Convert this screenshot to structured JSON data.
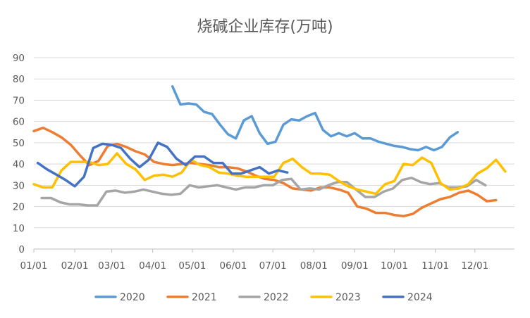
{
  "chart_data": {
    "type": "line",
    "title": "烧碱企业库存(万吨)",
    "xlabel": "",
    "ylabel": "",
    "ylim": [
      0,
      90
    ],
    "yticks": [
      "0",
      "10",
      "20",
      "30",
      "40",
      "50",
      "60",
      "70",
      "80",
      "90"
    ],
    "xlim": [
      1,
      365
    ],
    "xticks": [
      {
        "label": "01/01",
        "day": 1
      },
      {
        "label": "02/01",
        "day": 32
      },
      {
        "label": "03/01",
        "day": 60
      },
      {
        "label": "04/01",
        "day": 91
      },
      {
        "label": "05/01",
        "day": 121
      },
      {
        "label": "06/01",
        "day": 152
      },
      {
        "label": "07/01",
        "day": 182
      },
      {
        "label": "08/01",
        "day": 213
      },
      {
        "label": "09/01",
        "day": 244
      },
      {
        "label": "10/01",
        "day": 274
      },
      {
        "label": "11/01",
        "day": 305
      },
      {
        "label": "12/01",
        "day": 335
      }
    ],
    "grid": true,
    "legend": "bottom",
    "series": [
      {
        "name": "2020",
        "color": "#5b9bd5",
        "points": [
          [
            106,
            76.5
          ],
          [
            112,
            68
          ],
          [
            118,
            68.5
          ],
          [
            124,
            68
          ],
          [
            130,
            64.5
          ],
          [
            136,
            63.5
          ],
          [
            142,
            58.5
          ],
          [
            148,
            54
          ],
          [
            154,
            52
          ],
          [
            160,
            60.5
          ],
          [
            166,
            62.5
          ],
          [
            172,
            54.5
          ],
          [
            178,
            49.5
          ],
          [
            184,
            50.5
          ],
          [
            190,
            58.5
          ],
          [
            196,
            61
          ],
          [
            202,
            60.5
          ],
          [
            208,
            62.5
          ],
          [
            214,
            64
          ],
          [
            220,
            56
          ],
          [
            226,
            53
          ],
          [
            232,
            54.5
          ],
          [
            238,
            53
          ],
          [
            244,
            54.5
          ],
          [
            250,
            52
          ],
          [
            256,
            52
          ],
          [
            262,
            50.5
          ],
          [
            268,
            49.5
          ],
          [
            274,
            48.5
          ],
          [
            280,
            48
          ],
          [
            286,
            47
          ],
          [
            292,
            46.5
          ],
          [
            298,
            48
          ],
          [
            304,
            46.5
          ],
          [
            310,
            48
          ],
          [
            316,
            52.5
          ],
          [
            322,
            55
          ]
        ]
      },
      {
        "name": "2021",
        "color": "#ed7d31",
        "points": [
          [
            1,
            55.5
          ],
          [
            8,
            57
          ],
          [
            15,
            55
          ],
          [
            22,
            52.5
          ],
          [
            29,
            49
          ],
          [
            36,
            44
          ],
          [
            43,
            39.5
          ],
          [
            50,
            41.5
          ],
          [
            57,
            48.5
          ],
          [
            64,
            49.5
          ],
          [
            71,
            48
          ],
          [
            78,
            46
          ],
          [
            85,
            44.5
          ],
          [
            92,
            41
          ],
          [
            99,
            40
          ],
          [
            106,
            39.5
          ],
          [
            113,
            40
          ],
          [
            120,
            40.5
          ],
          [
            127,
            40
          ],
          [
            134,
            39.5
          ],
          [
            141,
            38.5
          ],
          [
            148,
            38.5
          ],
          [
            155,
            38
          ],
          [
            162,
            36.5
          ],
          [
            169,
            34.5
          ],
          [
            176,
            33
          ],
          [
            183,
            32.5
          ],
          [
            190,
            31
          ],
          [
            197,
            28.5
          ],
          [
            204,
            28
          ],
          [
            211,
            27.5
          ],
          [
            218,
            29
          ],
          [
            225,
            29
          ],
          [
            232,
            28
          ],
          [
            239,
            26.5
          ],
          [
            246,
            20
          ],
          [
            253,
            19
          ],
          [
            260,
            17
          ],
          [
            267,
            17
          ],
          [
            274,
            16
          ],
          [
            281,
            15.5
          ],
          [
            288,
            16.5
          ],
          [
            295,
            19.5
          ],
          [
            302,
            21.5
          ],
          [
            309,
            23.5
          ],
          [
            316,
            24.5
          ],
          [
            323,
            26.5
          ],
          [
            330,
            27.5
          ],
          [
            337,
            25.5
          ],
          [
            344,
            22.5
          ],
          [
            351,
            23
          ]
        ]
      },
      {
        "name": "2022",
        "color": "#a5a5a5",
        "points": [
          [
            7,
            24
          ],
          [
            14,
            24
          ],
          [
            21,
            22
          ],
          [
            28,
            21
          ],
          [
            35,
            21
          ],
          [
            42,
            20.5
          ],
          [
            49,
            20.5
          ],
          [
            56,
            27
          ],
          [
            63,
            27.5
          ],
          [
            70,
            26.5
          ],
          [
            77,
            27
          ],
          [
            84,
            28
          ],
          [
            91,
            27
          ],
          [
            98,
            26
          ],
          [
            105,
            25.5
          ],
          [
            112,
            26
          ],
          [
            119,
            30
          ],
          [
            126,
            29
          ],
          [
            133,
            29.5
          ],
          [
            140,
            30
          ],
          [
            147,
            29
          ],
          [
            154,
            28
          ],
          [
            161,
            29
          ],
          [
            168,
            29
          ],
          [
            175,
            30
          ],
          [
            182,
            30
          ],
          [
            189,
            32.5
          ],
          [
            196,
            33
          ],
          [
            203,
            28
          ],
          [
            210,
            28.5
          ],
          [
            217,
            28
          ],
          [
            224,
            30
          ],
          [
            231,
            31.5
          ],
          [
            238,
            31.5
          ],
          [
            245,
            28
          ],
          [
            252,
            24.5
          ],
          [
            259,
            24.5
          ],
          [
            266,
            27
          ],
          [
            273,
            28.5
          ],
          [
            280,
            32.5
          ],
          [
            287,
            33.5
          ],
          [
            294,
            31.5
          ],
          [
            301,
            30.5
          ],
          [
            308,
            31
          ],
          [
            315,
            29
          ],
          [
            322,
            29
          ],
          [
            329,
            29.5
          ],
          [
            336,
            32.5
          ],
          [
            343,
            30
          ]
        ]
      },
      {
        "name": "2023",
        "color": "#ffc000",
        "points": [
          [
            1,
            30.5
          ],
          [
            8,
            29
          ],
          [
            15,
            29
          ],
          [
            22,
            37
          ],
          [
            29,
            41
          ],
          [
            36,
            41
          ],
          [
            43,
            41
          ],
          [
            50,
            39.5
          ],
          [
            57,
            40
          ],
          [
            64,
            45
          ],
          [
            71,
            40
          ],
          [
            78,
            37.5
          ],
          [
            85,
            32.5
          ],
          [
            92,
            34.5
          ],
          [
            99,
            35
          ],
          [
            106,
            34
          ],
          [
            113,
            36
          ],
          [
            120,
            42
          ],
          [
            127,
            39.5
          ],
          [
            134,
            38.5
          ],
          [
            141,
            36
          ],
          [
            148,
            35.5
          ],
          [
            155,
            34.5
          ],
          [
            162,
            34
          ],
          [
            169,
            34
          ],
          [
            176,
            34
          ],
          [
            183,
            34
          ],
          [
            190,
            40.5
          ],
          [
            197,
            42.5
          ],
          [
            204,
            38.5
          ],
          [
            211,
            35.5
          ],
          [
            218,
            35.5
          ],
          [
            225,
            35
          ],
          [
            232,
            32
          ],
          [
            239,
            29.5
          ],
          [
            246,
            28
          ],
          [
            253,
            27
          ],
          [
            260,
            26
          ],
          [
            267,
            30.5
          ],
          [
            274,
            32
          ],
          [
            281,
            40
          ],
          [
            288,
            39.5
          ],
          [
            295,
            43
          ],
          [
            302,
            40.5
          ],
          [
            309,
            31
          ],
          [
            316,
            28
          ],
          [
            323,
            28.5
          ],
          [
            330,
            30.5
          ],
          [
            337,
            35.5
          ],
          [
            344,
            38
          ],
          [
            351,
            42
          ],
          [
            358,
            36.5
          ]
        ]
      },
      {
        "name": "2024",
        "color": "#4472c4",
        "points": [
          [
            4,
            40.5
          ],
          [
            11,
            37.5
          ],
          [
            18,
            35
          ],
          [
            25,
            32.5
          ],
          [
            32,
            29.5
          ],
          [
            39,
            34
          ],
          [
            46,
            47.5
          ],
          [
            53,
            49.5
          ],
          [
            60,
            49
          ],
          [
            67,
            47.5
          ],
          [
            74,
            42.5
          ],
          [
            81,
            38.5
          ],
          [
            88,
            42
          ],
          [
            95,
            50
          ],
          [
            102,
            48
          ],
          [
            109,
            42.5
          ],
          [
            116,
            39.5
          ],
          [
            123,
            43.5
          ],
          [
            130,
            43.5
          ],
          [
            137,
            40.5
          ],
          [
            144,
            40.5
          ],
          [
            151,
            35.5
          ],
          [
            158,
            35.5
          ],
          [
            165,
            37
          ],
          [
            172,
            38.5
          ],
          [
            179,
            35.5
          ],
          [
            186,
            37
          ],
          [
            193,
            36
          ]
        ]
      }
    ]
  }
}
